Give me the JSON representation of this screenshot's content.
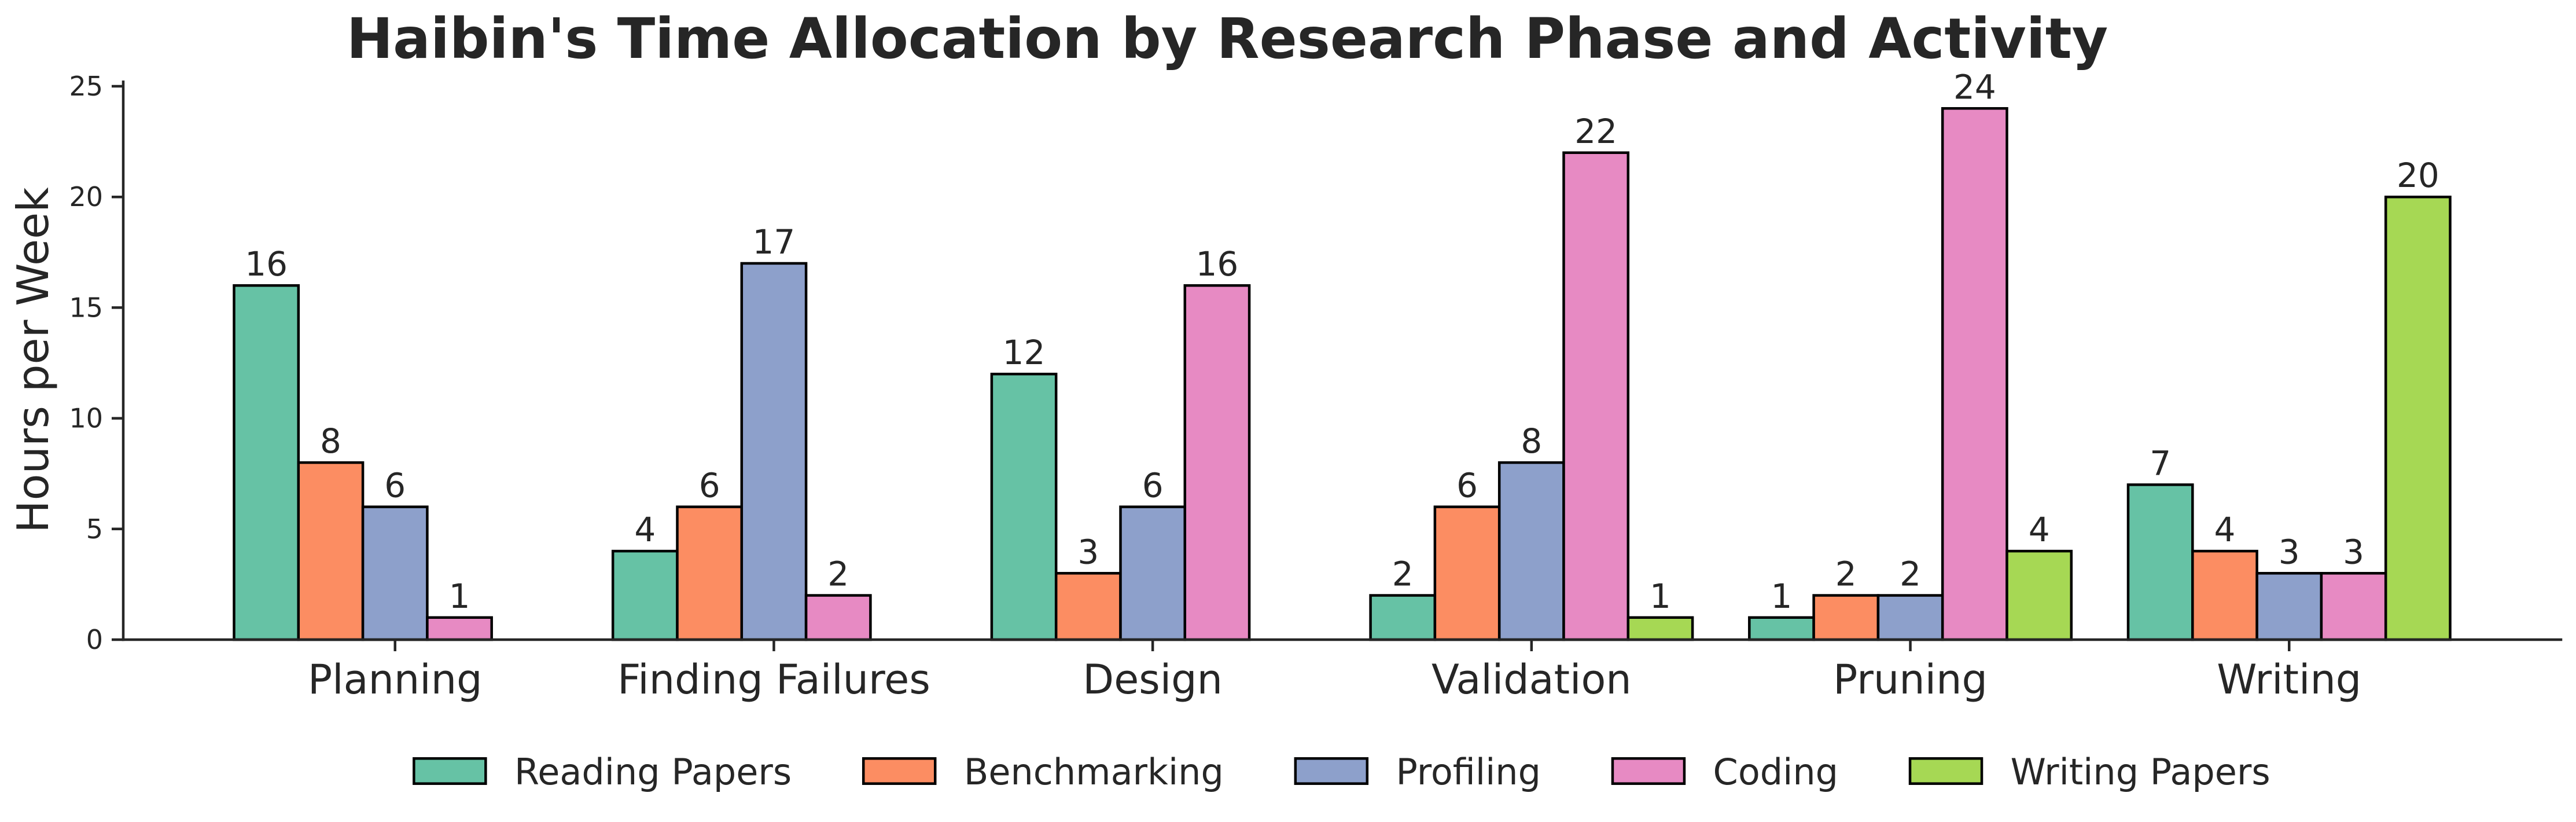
{
  "chart_data": {
    "type": "bar",
    "title": "Haibin's Time Allocation by Research Phase and Activity",
    "ylabel": "Hours per Week",
    "categories": [
      "Planning",
      "Finding Failures",
      "Design",
      "Validation",
      "Pruning",
      "Writing"
    ],
    "series": [
      {
        "name": "Reading Papers",
        "color": "#66c2a5",
        "values": [
          16,
          4,
          12,
          2,
          1,
          7
        ]
      },
      {
        "name": "Benchmarking",
        "color": "#fc8d62",
        "values": [
          8,
          6,
          3,
          6,
          2,
          4
        ]
      },
      {
        "name": "Profiling",
        "color": "#8da0cb",
        "values": [
          6,
          17,
          6,
          8,
          2,
          3
        ]
      },
      {
        "name": "Coding",
        "color": "#e78ac3",
        "values": [
          1,
          2,
          16,
          22,
          24,
          3
        ]
      },
      {
        "name": "Writing Papers",
        "color": "#a6d854",
        "values": [
          0,
          0,
          0,
          1,
          4,
          20
        ]
      }
    ],
    "ylim": [
      0,
      25.2
    ],
    "yticks": [
      0,
      5,
      10,
      15,
      20,
      25
    ],
    "grid": false,
    "legend": "bottom-center",
    "edge_color": "#000000",
    "text_color": "#262626"
  }
}
